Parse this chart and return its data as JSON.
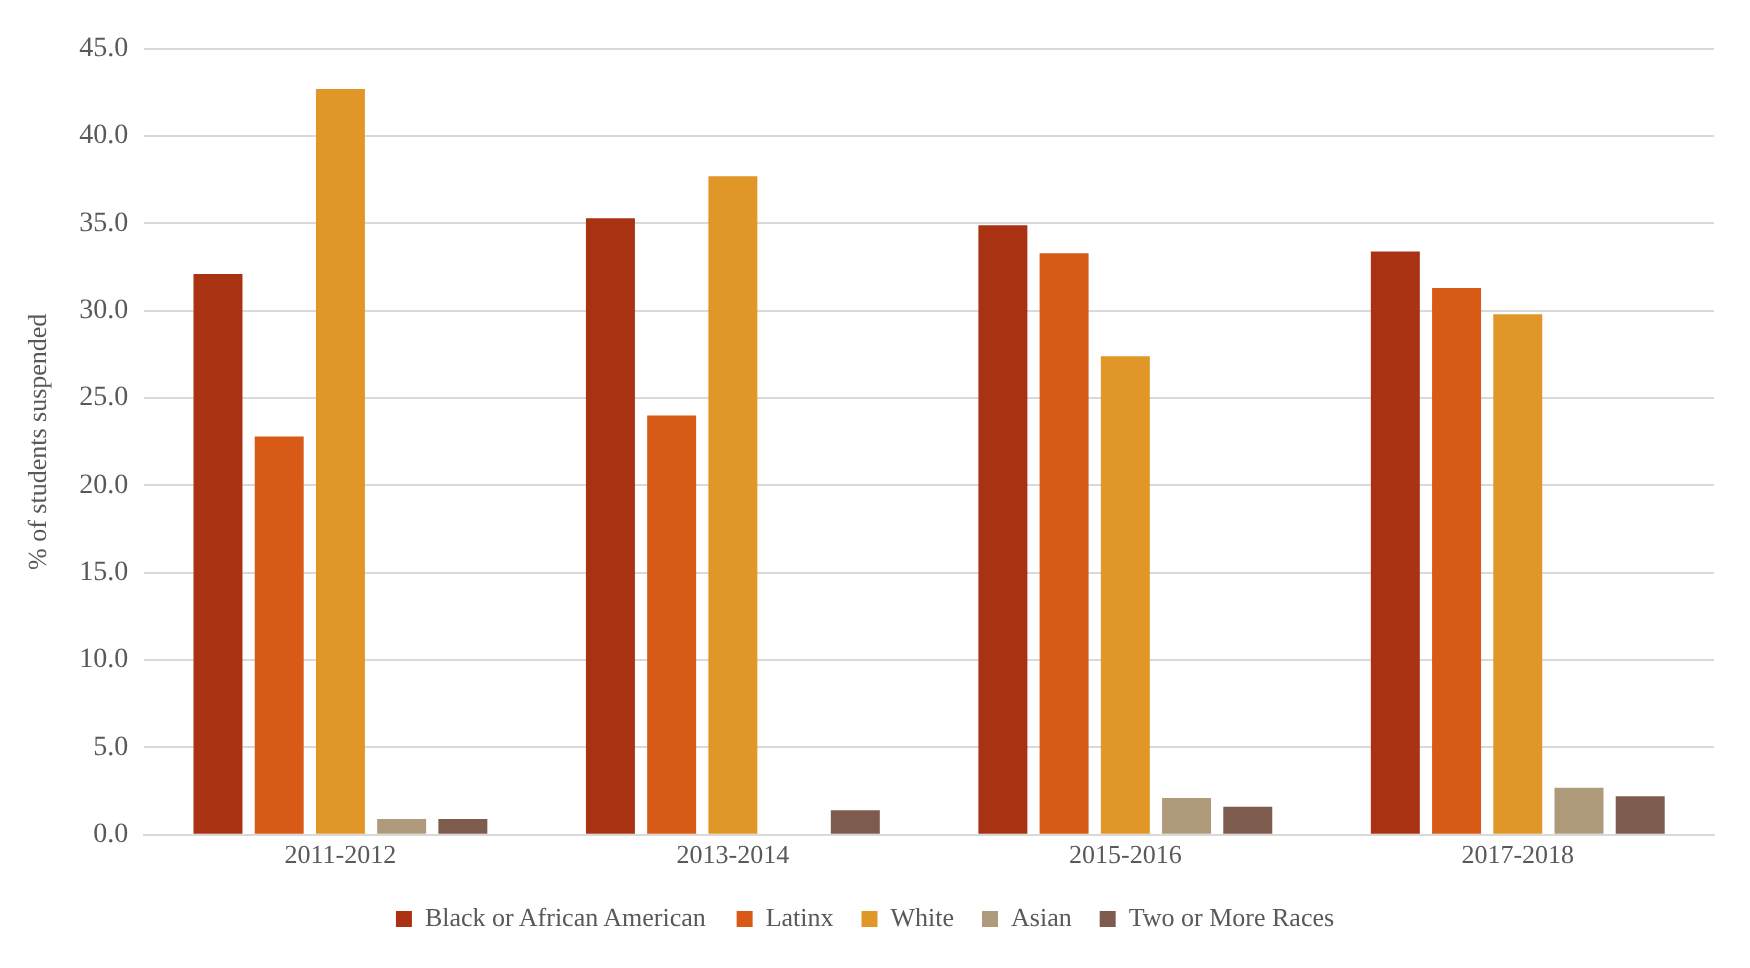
{
  "chart_data": {
    "type": "bar",
    "ylabel": "% of students suspended",
    "categories": [
      "2011-2012",
      "2013-2014",
      "2015-2016",
      "2017-2018"
    ],
    "series": [
      {
        "name": "Black or African American",
        "color": "#a83211",
        "values": [
          32.1,
          35.3,
          34.9,
          33.4
        ]
      },
      {
        "name": "Latinx",
        "color": "#d75a17",
        "values": [
          22.8,
          24.0,
          33.3,
          31.3
        ]
      },
      {
        "name": "White",
        "color": "#e19628",
        "values": [
          42.7,
          37.7,
          27.4,
          29.8
        ]
      },
      {
        "name": "Asian",
        "color": "#b09a7c",
        "values": [
          0.9,
          null,
          2.1,
          2.7
        ]
      },
      {
        "name": "Two or More Races",
        "color": "#7d5c4e",
        "values": [
          0.9,
          1.4,
          1.6,
          2.2
        ]
      }
    ],
    "ylim": [
      0,
      45
    ],
    "yticks": [
      {
        "value": 0,
        "label": "0.0"
      },
      {
        "value": 5,
        "label": "5.0"
      },
      {
        "value": 10,
        "label": "10.0"
      },
      {
        "value": 15,
        "label": "15.0"
      },
      {
        "value": 20,
        "label": "20.0"
      },
      {
        "value": 25,
        "label": "25.0"
      },
      {
        "value": 30,
        "label": "30.0"
      },
      {
        "value": 35,
        "label": "35.0"
      },
      {
        "value": 40,
        "label": "40.0"
      },
      {
        "value": 45,
        "label": "45.0"
      }
    ],
    "grid": "y",
    "legend": "bottom"
  }
}
